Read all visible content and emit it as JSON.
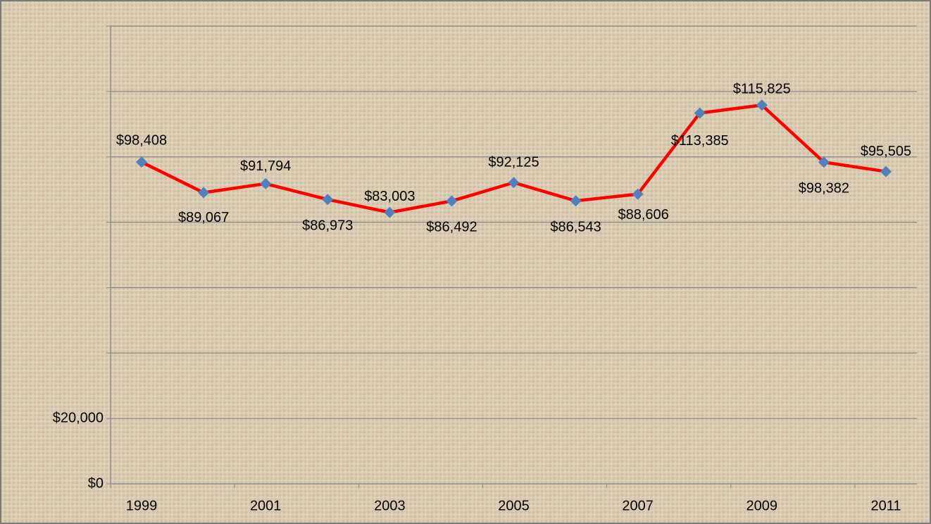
{
  "chart_data": {
    "type": "line",
    "categories": [
      "1999",
      null,
      "2001",
      null,
      "2003",
      null,
      "2005",
      null,
      "2007",
      null,
      "2009",
      null,
      "2011"
    ],
    "series": [
      {
        "color": "#ff0000",
        "marker_color": "#4f81bd",
        "values": [
          98408,
          89067,
          91794,
          86973,
          83003,
          86492,
          92125,
          86543,
          88606,
          113385,
          115825,
          98382,
          95505
        ],
        "value_labels": [
          "$98,408",
          "$89,067",
          "$91,794",
          "$86,973",
          "$83,003",
          "$86,492",
          "$92,125",
          "$86,543",
          "$88,606",
          "$113,385",
          "$115,825",
          "$98,382",
          "$95,505"
        ]
      }
    ],
    "ylim": [
      0,
      140000
    ],
    "yticks": [
      {
        "value": 0,
        "label": "$0"
      },
      {
        "value": 20000,
        "label": "$20,000"
      },
      {
        "value": 40000,
        "label": null
      },
      {
        "value": 60000,
        "label": null
      },
      {
        "value": 80000,
        "label": null
      },
      {
        "value": 100000,
        "label": null
      },
      {
        "value": 120000,
        "label": null
      },
      {
        "value": 140000,
        "label": null
      }
    ],
    "grid": true
  }
}
